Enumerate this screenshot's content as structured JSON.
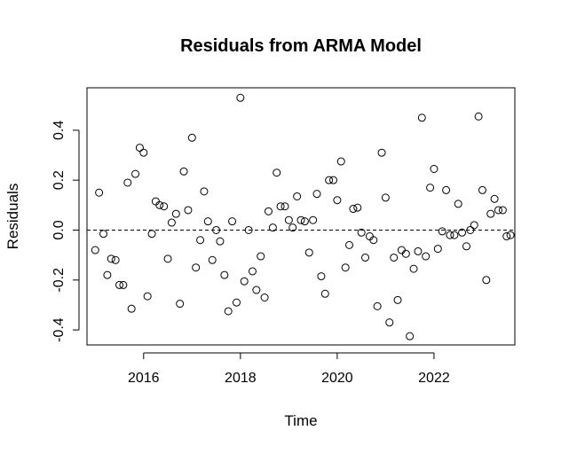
{
  "chart_data": {
    "type": "scatter",
    "title": "Residuals from ARMA Model",
    "xlabel": "Time",
    "ylabel": "Residuals",
    "xlim": [
      2014.83,
      2023.67
    ],
    "ylim": [
      -0.46,
      0.57
    ],
    "xticks": [
      2016,
      2018,
      2020,
      2022
    ],
    "xtick_labels": [
      "2016",
      "2018",
      "2020",
      "2022"
    ],
    "yticks": [
      -0.4,
      -0.2,
      0.0,
      0.2,
      0.4
    ],
    "ytick_labels": [
      "-0.4",
      "-0.2",
      "0.0",
      "0.2",
      "0.4"
    ],
    "reference_line": {
      "y": 0,
      "style": "dashed"
    },
    "marker": "open-circle",
    "grid": false,
    "series": [
      {
        "x": [
          2015.0,
          2015.08,
          2015.17,
          2015.25,
          2015.33,
          2015.42,
          2015.5,
          2015.58,
          2015.67,
          2015.75,
          2015.83,
          2015.92,
          2016.0,
          2016.08,
          2016.17,
          2016.25,
          2016.33,
          2016.42,
          2016.5,
          2016.58,
          2016.67,
          2016.75,
          2016.83,
          2016.92,
          2017.0,
          2017.08,
          2017.17,
          2017.25,
          2017.33,
          2017.42,
          2017.5,
          2017.58,
          2017.67,
          2017.75,
          2017.83,
          2017.92,
          2018.0,
          2018.08,
          2018.17,
          2018.25,
          2018.33,
          2018.42,
          2018.5,
          2018.58,
          2018.67,
          2018.75,
          2018.83,
          2018.92,
          2019.0,
          2019.08,
          2019.17,
          2019.25,
          2019.33,
          2019.42,
          2019.5,
          2019.58,
          2019.67,
          2019.75,
          2019.83,
          2019.92,
          2020.0,
          2020.08,
          2020.17,
          2020.25,
          2020.33,
          2020.42,
          2020.5,
          2020.58,
          2020.67,
          2020.75,
          2020.83,
          2020.92,
          2021.0,
          2021.08,
          2021.17,
          2021.25,
          2021.33,
          2021.42,
          2021.5,
          2021.58,
          2021.67,
          2021.75,
          2021.83,
          2021.92,
          2022.0,
          2022.08,
          2022.17,
          2022.25,
          2022.33,
          2022.42,
          2022.5,
          2022.58,
          2022.67,
          2022.75,
          2022.83,
          2022.92,
          2023.0,
          2023.08,
          2023.17,
          2023.25,
          2023.33,
          2023.42,
          2023.5,
          2023.58
        ],
        "y": [
          -0.08,
          0.15,
          -0.015,
          -0.18,
          -0.115,
          -0.12,
          -0.22,
          -0.22,
          0.19,
          -0.315,
          0.225,
          0.33,
          0.31,
          -0.265,
          -0.015,
          0.115,
          0.1,
          0.095,
          -0.115,
          0.03,
          0.065,
          -0.295,
          0.235,
          0.08,
          0.37,
          -0.15,
          -0.04,
          0.155,
          0.035,
          -0.12,
          0.0,
          -0.045,
          -0.18,
          -0.325,
          0.035,
          -0.29,
          0.53,
          -0.205,
          0.0,
          -0.165,
          -0.24,
          -0.105,
          -0.27,
          0.075,
          0.01,
          0.23,
          0.095,
          0.095,
          0.04,
          0.01,
          0.135,
          0.04,
          0.035,
          -0.09,
          0.04,
          0.145,
          -0.185,
          -0.255,
          0.2,
          0.2,
          0.12,
          0.275,
          -0.15,
          -0.06,
          0.085,
          0.09,
          -0.01,
          -0.11,
          -0.025,
          -0.04,
          -0.305,
          0.31,
          0.13,
          -0.37,
          -0.11,
          -0.28,
          -0.08,
          -0.095,
          -0.425,
          -0.155,
          -0.085,
          0.45,
          -0.105,
          0.17,
          0.245,
          -0.075,
          -0.005,
          0.16,
          -0.02,
          -0.02,
          0.105,
          -0.01,
          -0.065,
          0.0,
          0.02,
          0.455,
          0.16,
          -0.2,
          0.065,
          0.125,
          0.08,
          0.08,
          -0.025,
          -0.02
        ]
      }
    ]
  }
}
